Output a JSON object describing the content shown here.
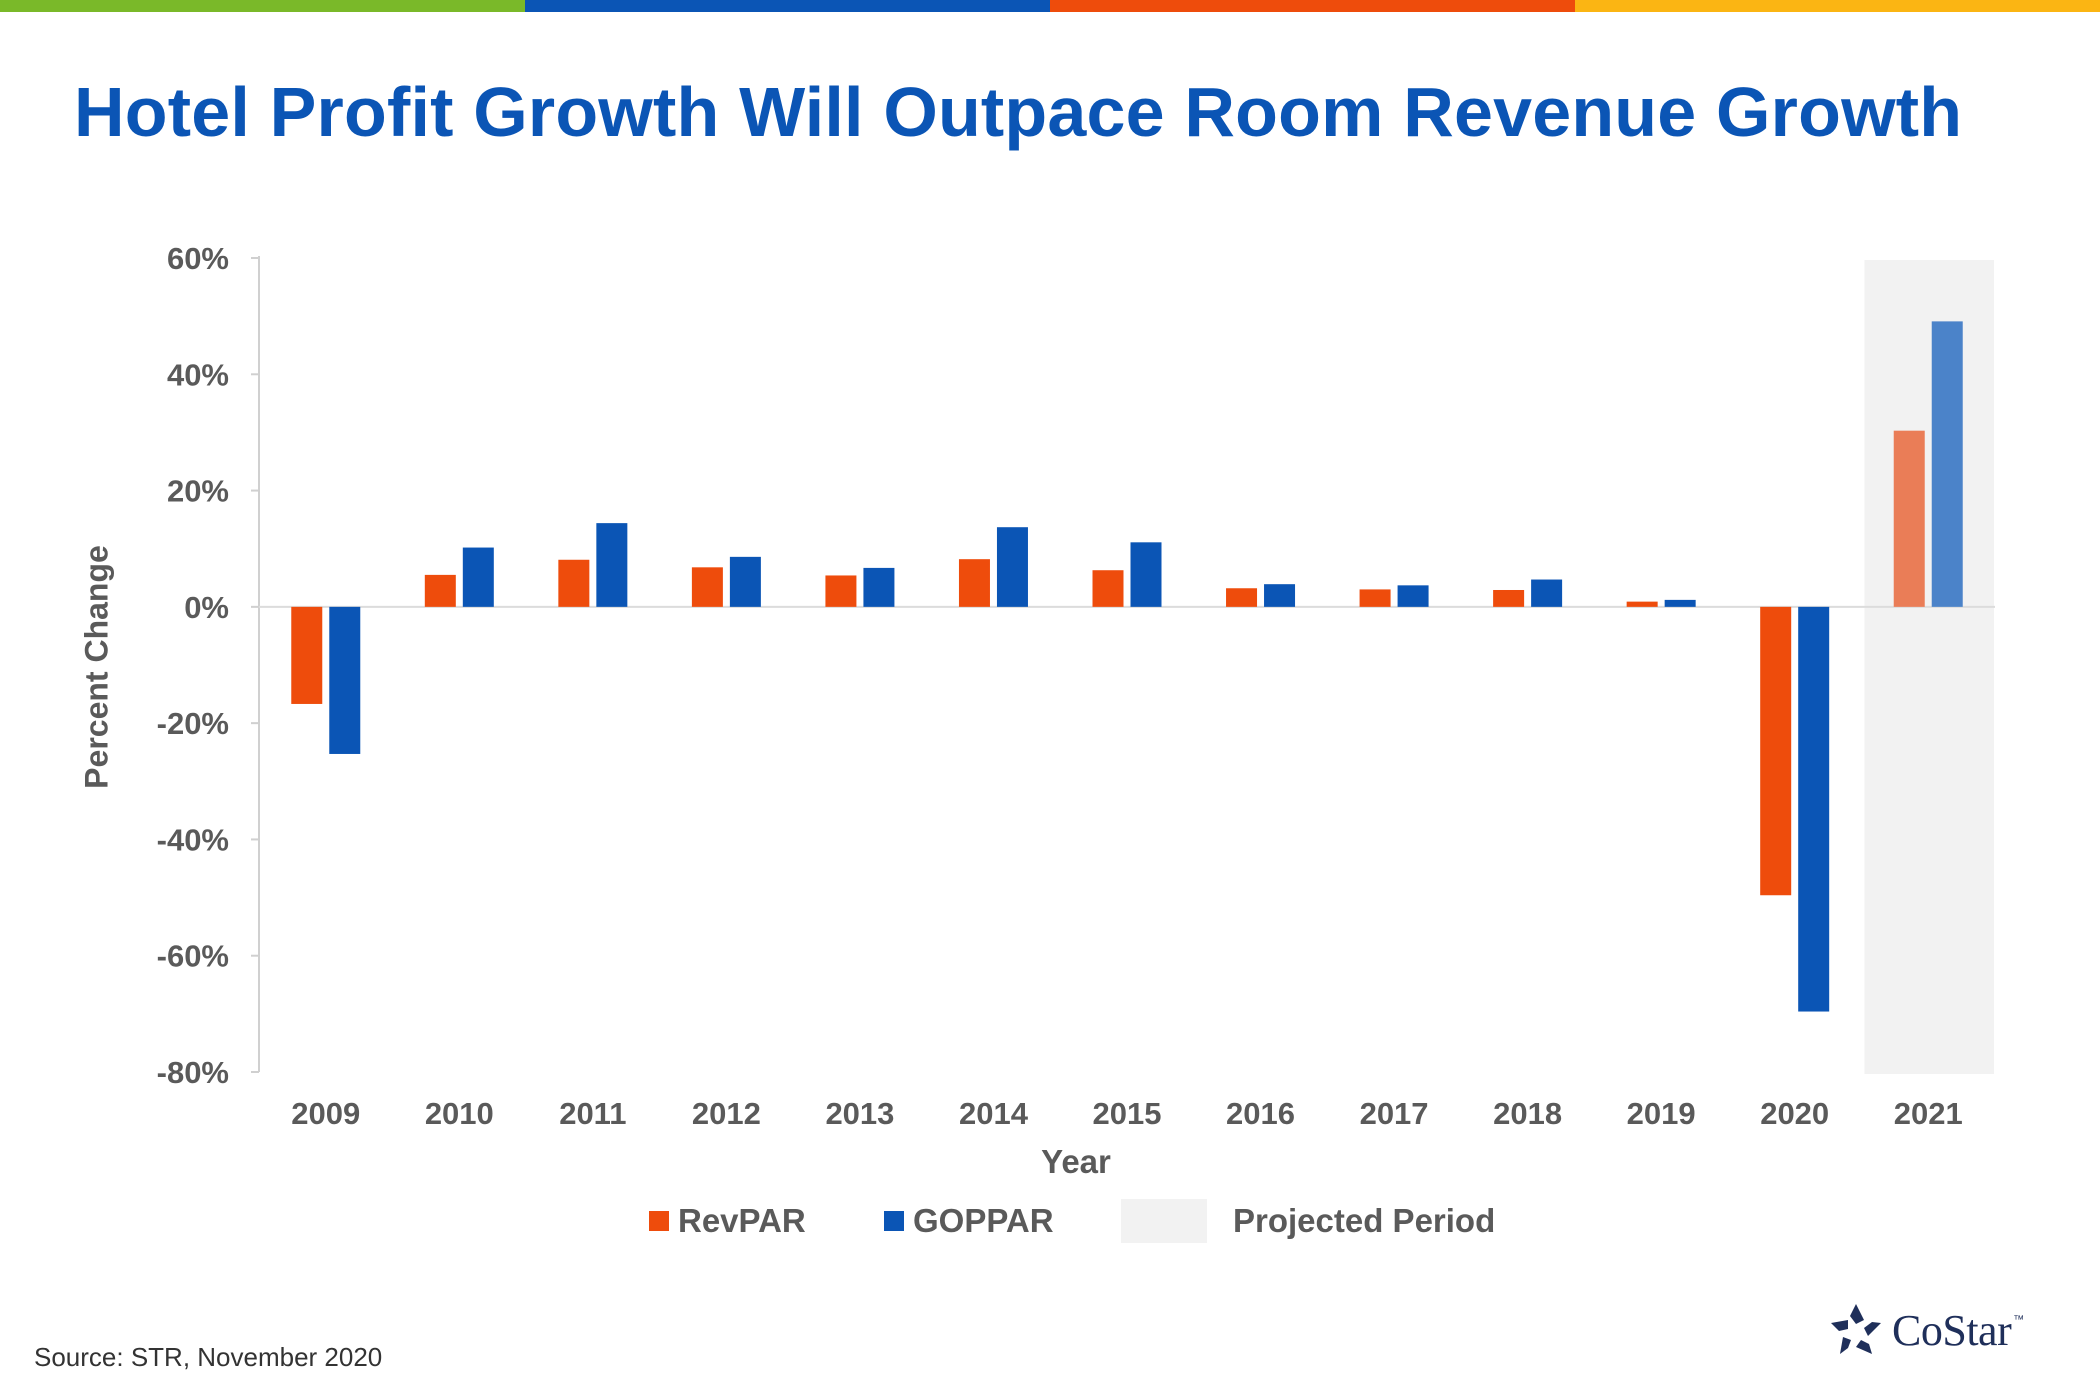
{
  "colors": {
    "topbar": [
      "#7ab929",
      "#0b55b5",
      "#ee4c0c",
      "#fbb513"
    ],
    "title": "#0b55b5",
    "revpar": "#ee4c0c",
    "goppar": "#0b55b5",
    "revpar_projected": "#ea7d57",
    "goppar_projected": "#4b83c9",
    "projected_shade": "#f2f2f2",
    "axis_text": "#5a5a5a"
  },
  "title": "Hotel Profit Growth Will Outpace Room Revenue Growth",
  "source": "Source: STR, November 2020",
  "logo": {
    "text": "CoStar",
    "tm": "™",
    "icon": "costar-star-icon"
  },
  "chart_data": {
    "type": "bar",
    "title": "Hotel Profit Growth Will Outpace Room Revenue Growth",
    "xlabel": "Year",
    "ylabel": "Percent Change",
    "ylim": [
      -80,
      60
    ],
    "yticks": [
      60,
      40,
      20,
      0,
      -20,
      -40,
      -60,
      -80
    ],
    "ytick_labels": [
      "60%",
      "40%",
      "20%",
      "0%",
      "-20%",
      "-40%",
      "-60%",
      "-80%"
    ],
    "categories": [
      "2009",
      "2010",
      "2011",
      "2012",
      "2013",
      "2014",
      "2015",
      "2016",
      "2017",
      "2018",
      "2019",
      "2020",
      "2021"
    ],
    "series": [
      {
        "name": "RevPAR",
        "values": [
          -16.7,
          5.5,
          8.1,
          6.8,
          5.4,
          8.2,
          6.3,
          3.2,
          3.0,
          2.9,
          0.9,
          -49.6,
          30.3
        ]
      },
      {
        "name": "GOPPAR",
        "values": [
          -25.3,
          10.2,
          14.4,
          8.6,
          6.7,
          13.7,
          11.1,
          3.9,
          3.7,
          4.7,
          1.2,
          -69.6,
          49.1
        ]
      }
    ],
    "projected_categories": [
      "2021"
    ],
    "legend": [
      "RevPAR",
      "GOPPAR",
      "Projected Period"
    ],
    "legend_position": "bottom",
    "grid": false
  }
}
